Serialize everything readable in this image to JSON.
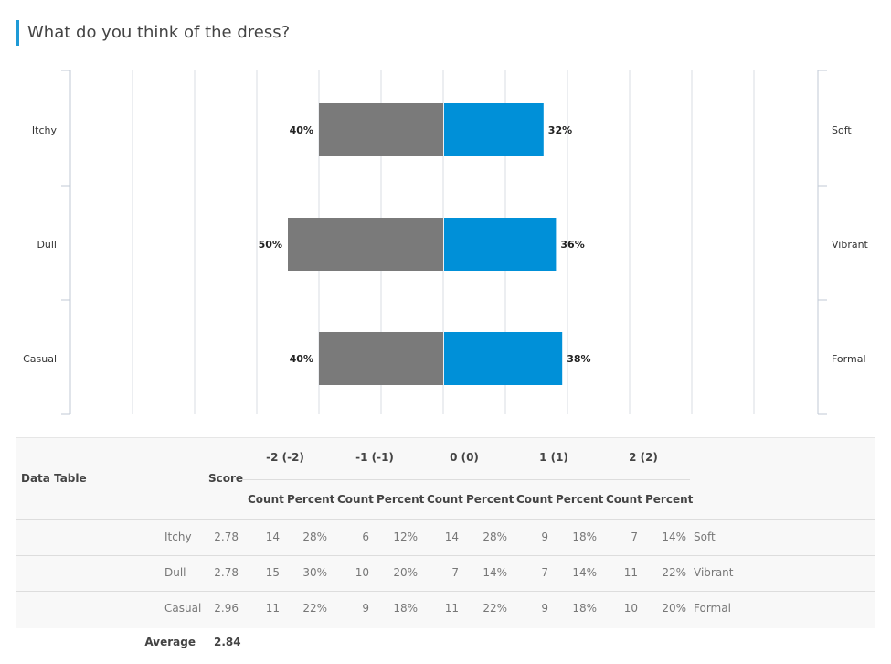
{
  "title": "What do you think of the dress?",
  "chart_data": {
    "type": "bar",
    "orientation": "horizontal-diverging",
    "categories": [
      "Itchy",
      "Dull",
      "Casual"
    ],
    "right_labels": [
      "Soft",
      "Vibrant",
      "Formal"
    ],
    "series": [
      {
        "values": [
          40,
          50,
          40
        ],
        "color": "#7a7a7a",
        "side": "left"
      },
      {
        "values": [
          32,
          36,
          38
        ],
        "color": "#0090d8",
        "side": "right"
      }
    ],
    "xlim": [
      -120,
      120
    ],
    "grid": true
  },
  "table": {
    "title": "Data Table",
    "score_label": "Score",
    "groups": [
      "-2 (-2)",
      "-1 (-1)",
      "0 (0)",
      "1 (1)",
      "2 (2)"
    ],
    "count_label": "Count",
    "percent_label": "Percent",
    "rows": [
      {
        "left": "Itchy",
        "score": "2.78",
        "cells": [
          "14",
          "28%",
          "6",
          "12%",
          "14",
          "28%",
          "9",
          "18%",
          "7",
          "14%"
        ],
        "right": "Soft"
      },
      {
        "left": "Dull",
        "score": "2.78",
        "cells": [
          "15",
          "30%",
          "10",
          "20%",
          "7",
          "14%",
          "7",
          "14%",
          "11",
          "22%"
        ],
        "right": "Vibrant"
      },
      {
        "left": "Casual",
        "score": "2.96",
        "cells": [
          "11",
          "22%",
          "9",
          "18%",
          "11",
          "22%",
          "9",
          "18%",
          "10",
          "20%"
        ],
        "right": "Formal"
      }
    ],
    "average_label": "Average",
    "average": "2.84"
  }
}
